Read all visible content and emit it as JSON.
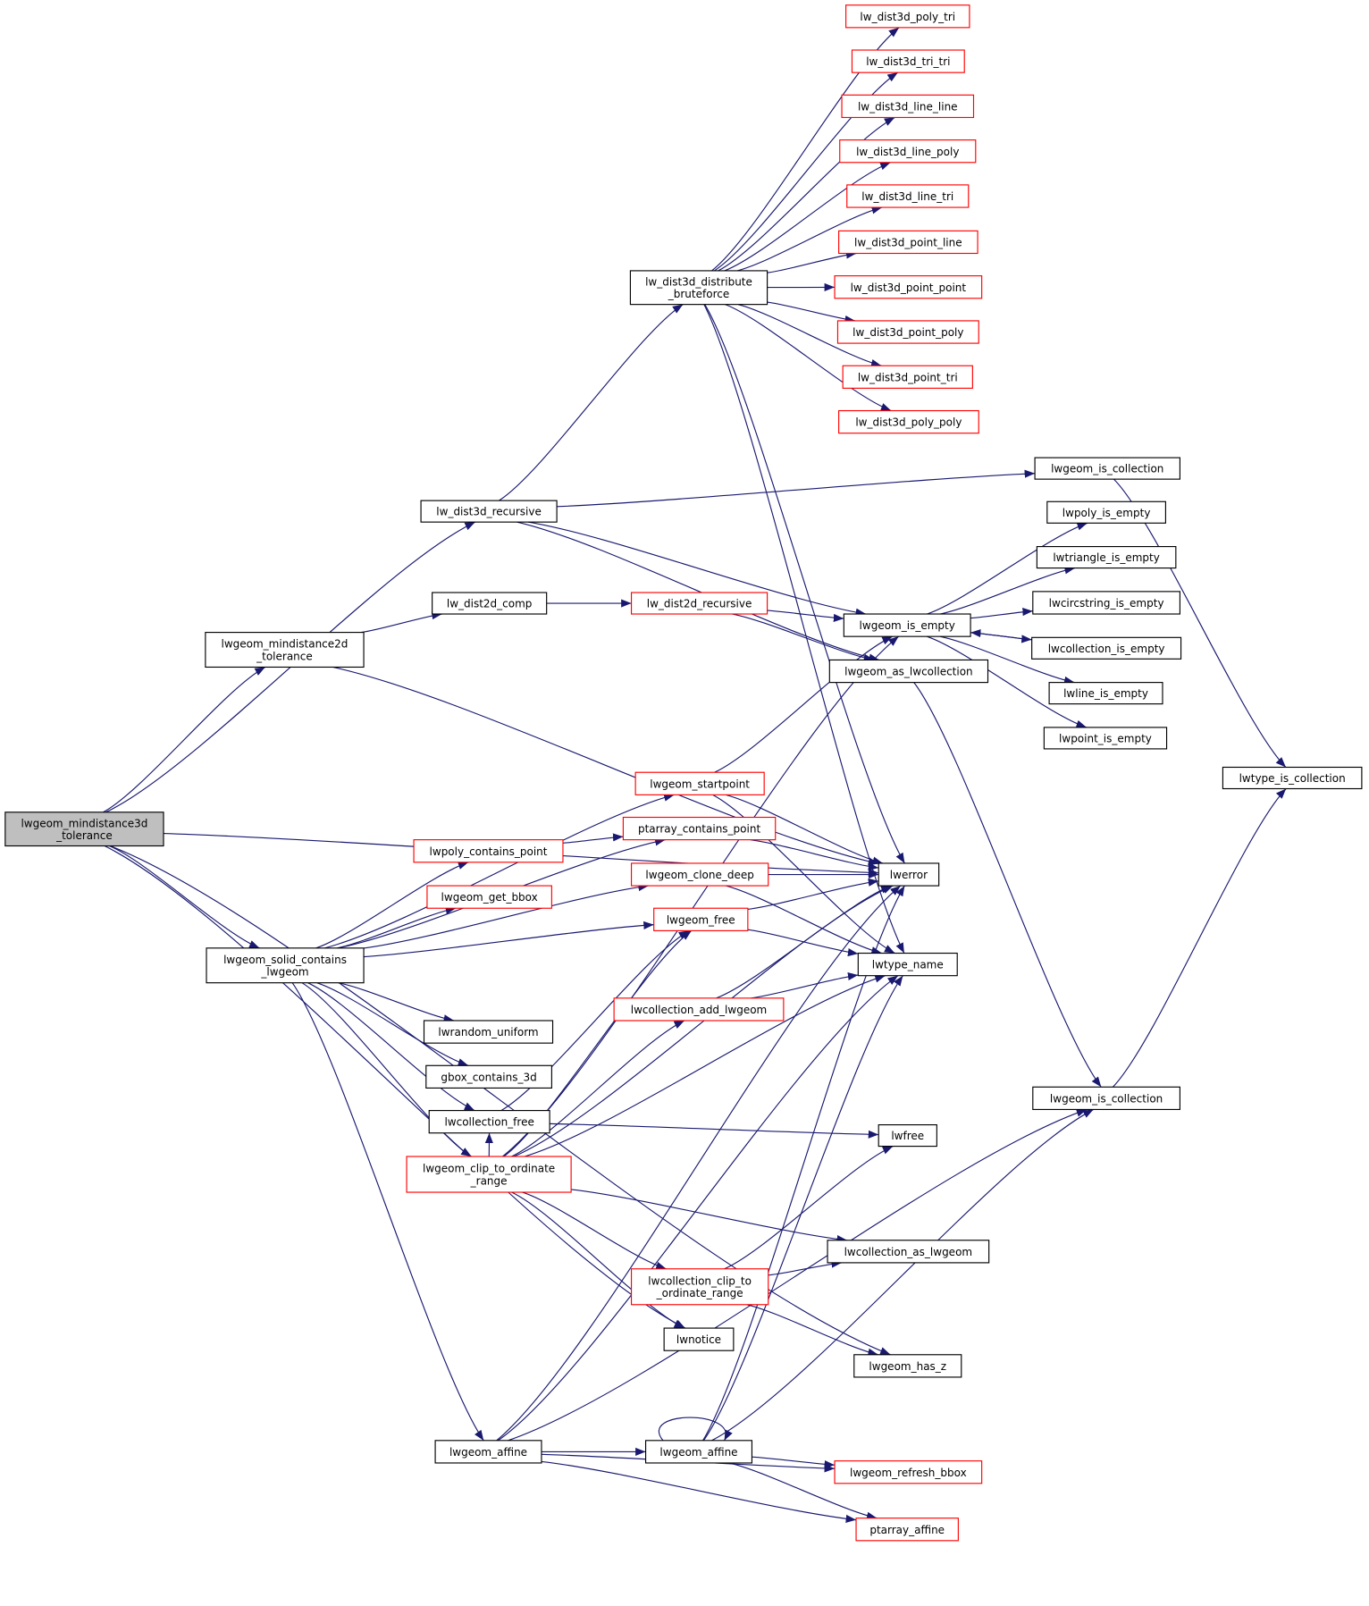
{
  "graph": {
    "type": "call-graph",
    "colors": {
      "edge": "#191970",
      "truncated_border": "#ff0000",
      "normal_border": "#000000",
      "root_fill": "#bfbfbf"
    },
    "nodes": [
      {
        "id": "n1",
        "label": [
          "lwgeom_mindistance3d",
          "_tolerance"
        ],
        "style": "root"
      },
      {
        "id": "n2",
        "label": [
          "lw_dist3d_recursive"
        ],
        "style": "normal"
      },
      {
        "id": "n3",
        "label": [
          "lw_dist3d_distribute",
          "_bruteforce"
        ],
        "style": "normal"
      },
      {
        "id": "n4",
        "label": [
          "lw_dist3d_poly_tri"
        ],
        "style": "red"
      },
      {
        "id": "n5",
        "label": [
          "lw_dist3d_tri_tri"
        ],
        "style": "red"
      },
      {
        "id": "n6",
        "label": [
          "lw_dist3d_line_line"
        ],
        "style": "red"
      },
      {
        "id": "n7",
        "label": [
          "lw_dist3d_line_poly"
        ],
        "style": "red"
      },
      {
        "id": "n8",
        "label": [
          "lw_dist3d_line_tri"
        ],
        "style": "red"
      },
      {
        "id": "n9",
        "label": [
          "lw_dist3d_point_line"
        ],
        "style": "red"
      },
      {
        "id": "n10",
        "label": [
          "lw_dist3d_point_point"
        ],
        "style": "red"
      },
      {
        "id": "n11",
        "label": [
          "lw_dist3d_point_poly"
        ],
        "style": "red"
      },
      {
        "id": "n12",
        "label": [
          "lw_dist3d_point_tri"
        ],
        "style": "red"
      },
      {
        "id": "n13",
        "label": [
          "lw_dist3d_poly_poly"
        ],
        "style": "red"
      },
      {
        "id": "n14",
        "label": [
          "lwgeom_is_collection"
        ],
        "style": "normal"
      },
      {
        "id": "n15",
        "label": [
          "lwpoly_is_empty"
        ],
        "style": "normal"
      },
      {
        "id": "n16",
        "label": [
          "lwtriangle_is_empty"
        ],
        "style": "normal"
      },
      {
        "id": "n17",
        "label": [
          "lwcircstring_is_empty"
        ],
        "style": "normal"
      },
      {
        "id": "n18",
        "label": [
          "lwcollection_is_empty"
        ],
        "style": "normal"
      },
      {
        "id": "n19",
        "label": [
          "lwline_is_empty"
        ],
        "style": "normal"
      },
      {
        "id": "n20",
        "label": [
          "lwpoint_is_empty"
        ],
        "style": "normal"
      },
      {
        "id": "n21",
        "label": [
          "lwtype_is_collection"
        ],
        "style": "normal"
      },
      {
        "id": "n22",
        "label": [
          "lw_dist2d_comp"
        ],
        "style": "normal"
      },
      {
        "id": "n23",
        "label": [
          "lw_dist2d_recursive"
        ],
        "style": "red"
      },
      {
        "id": "n24",
        "label": [
          "lwgeom_mindistance2d",
          "_tolerance"
        ],
        "style": "normal"
      },
      {
        "id": "n25",
        "label": [
          "lwgeom_is_empty"
        ],
        "style": "normal"
      },
      {
        "id": "n26",
        "label": [
          "lwgeom_as_lwcollection"
        ],
        "style": "normal"
      },
      {
        "id": "n27",
        "label": [
          "lwgeom_startpoint"
        ],
        "style": "red"
      },
      {
        "id": "n28",
        "label": [
          "ptarray_contains_point"
        ],
        "style": "red"
      },
      {
        "id": "n29",
        "label": [
          "lwpoly_contains_point"
        ],
        "style": "red"
      },
      {
        "id": "n30",
        "label": [
          "lwgeom_clone_deep"
        ],
        "style": "red"
      },
      {
        "id": "n31",
        "label": [
          "lwerror"
        ],
        "style": "normal"
      },
      {
        "id": "n32",
        "label": [
          "lwgeom_get_bbox"
        ],
        "style": "red"
      },
      {
        "id": "n33",
        "label": [
          "lwgeom_free"
        ],
        "style": "red"
      },
      {
        "id": "n34",
        "label": [
          "lwgeom_solid_contains",
          "_lwgeom"
        ],
        "style": "normal"
      },
      {
        "id": "n35",
        "label": [
          "lwtype_name"
        ],
        "style": "normal"
      },
      {
        "id": "n36",
        "label": [
          "lwcollection_add_lwgeom"
        ],
        "style": "red"
      },
      {
        "id": "n37",
        "label": [
          "lwrandom_uniform"
        ],
        "style": "normal"
      },
      {
        "id": "n38",
        "label": [
          "gbox_contains_3d"
        ],
        "style": "normal"
      },
      {
        "id": "n39",
        "label": [
          "lwgeom_is_collection"
        ],
        "style": "normal"
      },
      {
        "id": "n40",
        "label": [
          "lwcollection_free"
        ],
        "style": "normal"
      },
      {
        "id": "n41",
        "label": [
          "lwfree"
        ],
        "style": "normal"
      },
      {
        "id": "n42",
        "label": [
          "lwgeom_clip_to_ordinate",
          "_range"
        ],
        "style": "red"
      },
      {
        "id": "n43",
        "label": [
          "lwcollection_as_lwgeom"
        ],
        "style": "normal"
      },
      {
        "id": "n44",
        "label": [
          "lwcollection_clip_to",
          "_ordinate_range"
        ],
        "style": "red"
      },
      {
        "id": "n45",
        "label": [
          "lwnotice"
        ],
        "style": "normal"
      },
      {
        "id": "n46",
        "label": [
          "lwgeom_has_z"
        ],
        "style": "normal"
      },
      {
        "id": "n47",
        "label": [
          "lwgeom_affine"
        ],
        "style": "normal"
      },
      {
        "id": "n48",
        "label": [
          "lwgeom_affine"
        ],
        "style": "normal"
      },
      {
        "id": "n49",
        "label": [
          "lwgeom_refresh_bbox"
        ],
        "style": "red"
      },
      {
        "id": "n50",
        "label": [
          "ptarray_affine"
        ],
        "style": "red"
      }
    ],
    "edges": [
      [
        "n1",
        "n2"
      ],
      [
        "n1",
        "n24"
      ],
      [
        "n1",
        "n31"
      ],
      [
        "n1",
        "n34"
      ],
      [
        "n1",
        "n45"
      ],
      [
        "n1",
        "n46"
      ],
      [
        "n2",
        "n3"
      ],
      [
        "n2",
        "n14"
      ],
      [
        "n2",
        "n25"
      ],
      [
        "n2",
        "n26"
      ],
      [
        "n3",
        "n4"
      ],
      [
        "n3",
        "n5"
      ],
      [
        "n3",
        "n6"
      ],
      [
        "n3",
        "n7"
      ],
      [
        "n3",
        "n8"
      ],
      [
        "n3",
        "n9"
      ],
      [
        "n3",
        "n10"
      ],
      [
        "n3",
        "n11"
      ],
      [
        "n3",
        "n12"
      ],
      [
        "n3",
        "n13"
      ],
      [
        "n3",
        "n31"
      ],
      [
        "n3",
        "n35"
      ],
      [
        "n14",
        "n21"
      ],
      [
        "n25",
        "n15"
      ],
      [
        "n25",
        "n16"
      ],
      [
        "n25",
        "n17"
      ],
      [
        "n25",
        "n18"
      ],
      [
        "n25",
        "n19"
      ],
      [
        "n25",
        "n20"
      ],
      [
        "n18",
        "n25"
      ],
      [
        "n24",
        "n22"
      ],
      [
        "n24",
        "n31"
      ],
      [
        "n22",
        "n23"
      ],
      [
        "n23",
        "n25"
      ],
      [
        "n23",
        "n26"
      ],
      [
        "n26",
        "n39"
      ],
      [
        "n39",
        "n21"
      ],
      [
        "n34",
        "n27"
      ],
      [
        "n34",
        "n28"
      ],
      [
        "n34",
        "n29"
      ],
      [
        "n34",
        "n32"
      ],
      [
        "n34",
        "n30"
      ],
      [
        "n34",
        "n33"
      ],
      [
        "n34",
        "n37"
      ],
      [
        "n34",
        "n38"
      ],
      [
        "n34",
        "n40"
      ],
      [
        "n34",
        "n42"
      ],
      [
        "n34",
        "n47"
      ],
      [
        "n27",
        "n25"
      ],
      [
        "n27",
        "n31"
      ],
      [
        "n27",
        "n35"
      ],
      [
        "n28",
        "n31"
      ],
      [
        "n29",
        "n28"
      ],
      [
        "n30",
        "n31"
      ],
      [
        "n30",
        "n35"
      ],
      [
        "n33",
        "n31"
      ],
      [
        "n33",
        "n35"
      ],
      [
        "n36",
        "n31"
      ],
      [
        "n36",
        "n35"
      ],
      [
        "n40",
        "n33"
      ],
      [
        "n40",
        "n41"
      ],
      [
        "n42",
        "n25"
      ],
      [
        "n42",
        "n40"
      ],
      [
        "n42",
        "n33"
      ],
      [
        "n42",
        "n36"
      ],
      [
        "n42",
        "n31"
      ],
      [
        "n42",
        "n35"
      ],
      [
        "n42",
        "n43"
      ],
      [
        "n42",
        "n44"
      ],
      [
        "n42",
        "n45"
      ],
      [
        "n44",
        "n41"
      ],
      [
        "n44",
        "n43"
      ],
      [
        "n44",
        "n46"
      ],
      [
        "n47",
        "n48"
      ],
      [
        "n47",
        "n31"
      ],
      [
        "n47",
        "n35"
      ],
      [
        "n47",
        "n49"
      ],
      [
        "n47",
        "n50"
      ],
      [
        "n47",
        "n39"
      ],
      [
        "n48",
        "n48"
      ],
      [
        "n48",
        "n31"
      ],
      [
        "n48",
        "n35"
      ],
      [
        "n48",
        "n49"
      ],
      [
        "n48",
        "n50"
      ],
      [
        "n48",
        "n39"
      ]
    ]
  }
}
